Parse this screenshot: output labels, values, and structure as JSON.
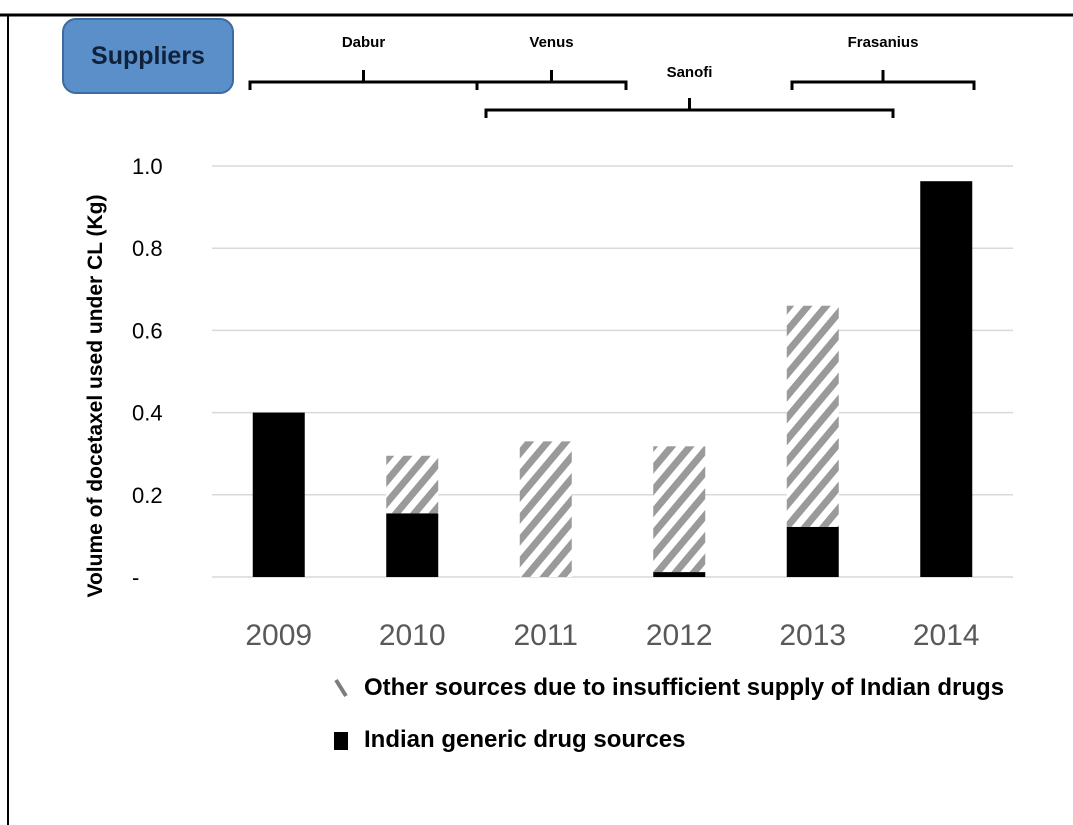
{
  "header": {
    "label": "Suppliers"
  },
  "suppliers": [
    {
      "name": "Dabur",
      "from": "2009",
      "to": "2011",
      "row": 1
    },
    {
      "name": "Venus",
      "from": "2011",
      "to": "2012",
      "row": 1
    },
    {
      "name": "Sanofi",
      "from": "2011",
      "to": "2014",
      "row": 2
    },
    {
      "name": "Frasanius",
      "from": "2013",
      "to": "2014",
      "row": 1
    }
  ],
  "chart_data": {
    "type": "bar",
    "stacked": true,
    "categories": [
      "2009",
      "2010",
      "2011",
      "2012",
      "2013",
      "2014"
    ],
    "series": [
      {
        "name": "Indian generic drug sources",
        "values": [
          0.4,
          0.155,
          0.0,
          0.012,
          0.122,
          0.963
        ],
        "color": "#000000",
        "pattern": "solid"
      },
      {
        "name": "Other sources due to insufficient supply of Indian drugs",
        "values": [
          0.0,
          0.14,
          0.33,
          0.306,
          0.538,
          0.0
        ],
        "color": "#9a9a9a",
        "pattern": "diagonal-hatch"
      }
    ],
    "ylabel": "Volume of docetaxel used under CL (Kg)",
    "ylim": [
      0,
      1.0
    ],
    "yticks": [
      0,
      0.2,
      0.4,
      0.6,
      0.8,
      1.0
    ],
    "ytick_labels": [
      "-",
      "0.2",
      "0.4",
      "0.6",
      "0.8",
      "1.0"
    ],
    "grid": true,
    "legend_position": "bottom"
  }
}
